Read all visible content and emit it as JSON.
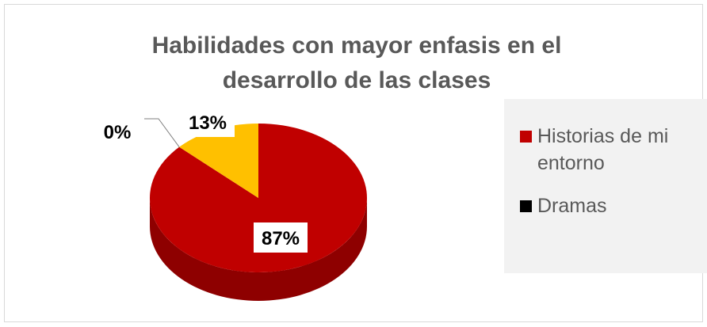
{
  "chart_data": {
    "type": "pie",
    "title": "Habilidades con mayor enfasis en el desarrollo de las clases",
    "categories": [
      "Historias de mi entorno",
      "Dramas",
      null
    ],
    "values": [
      87,
      0,
      13
    ],
    "value_labels": [
      "87%",
      "0%",
      "13%"
    ],
    "colors": [
      "#c00000",
      "#000000",
      "#ffc000"
    ],
    "legend": "right"
  }
}
